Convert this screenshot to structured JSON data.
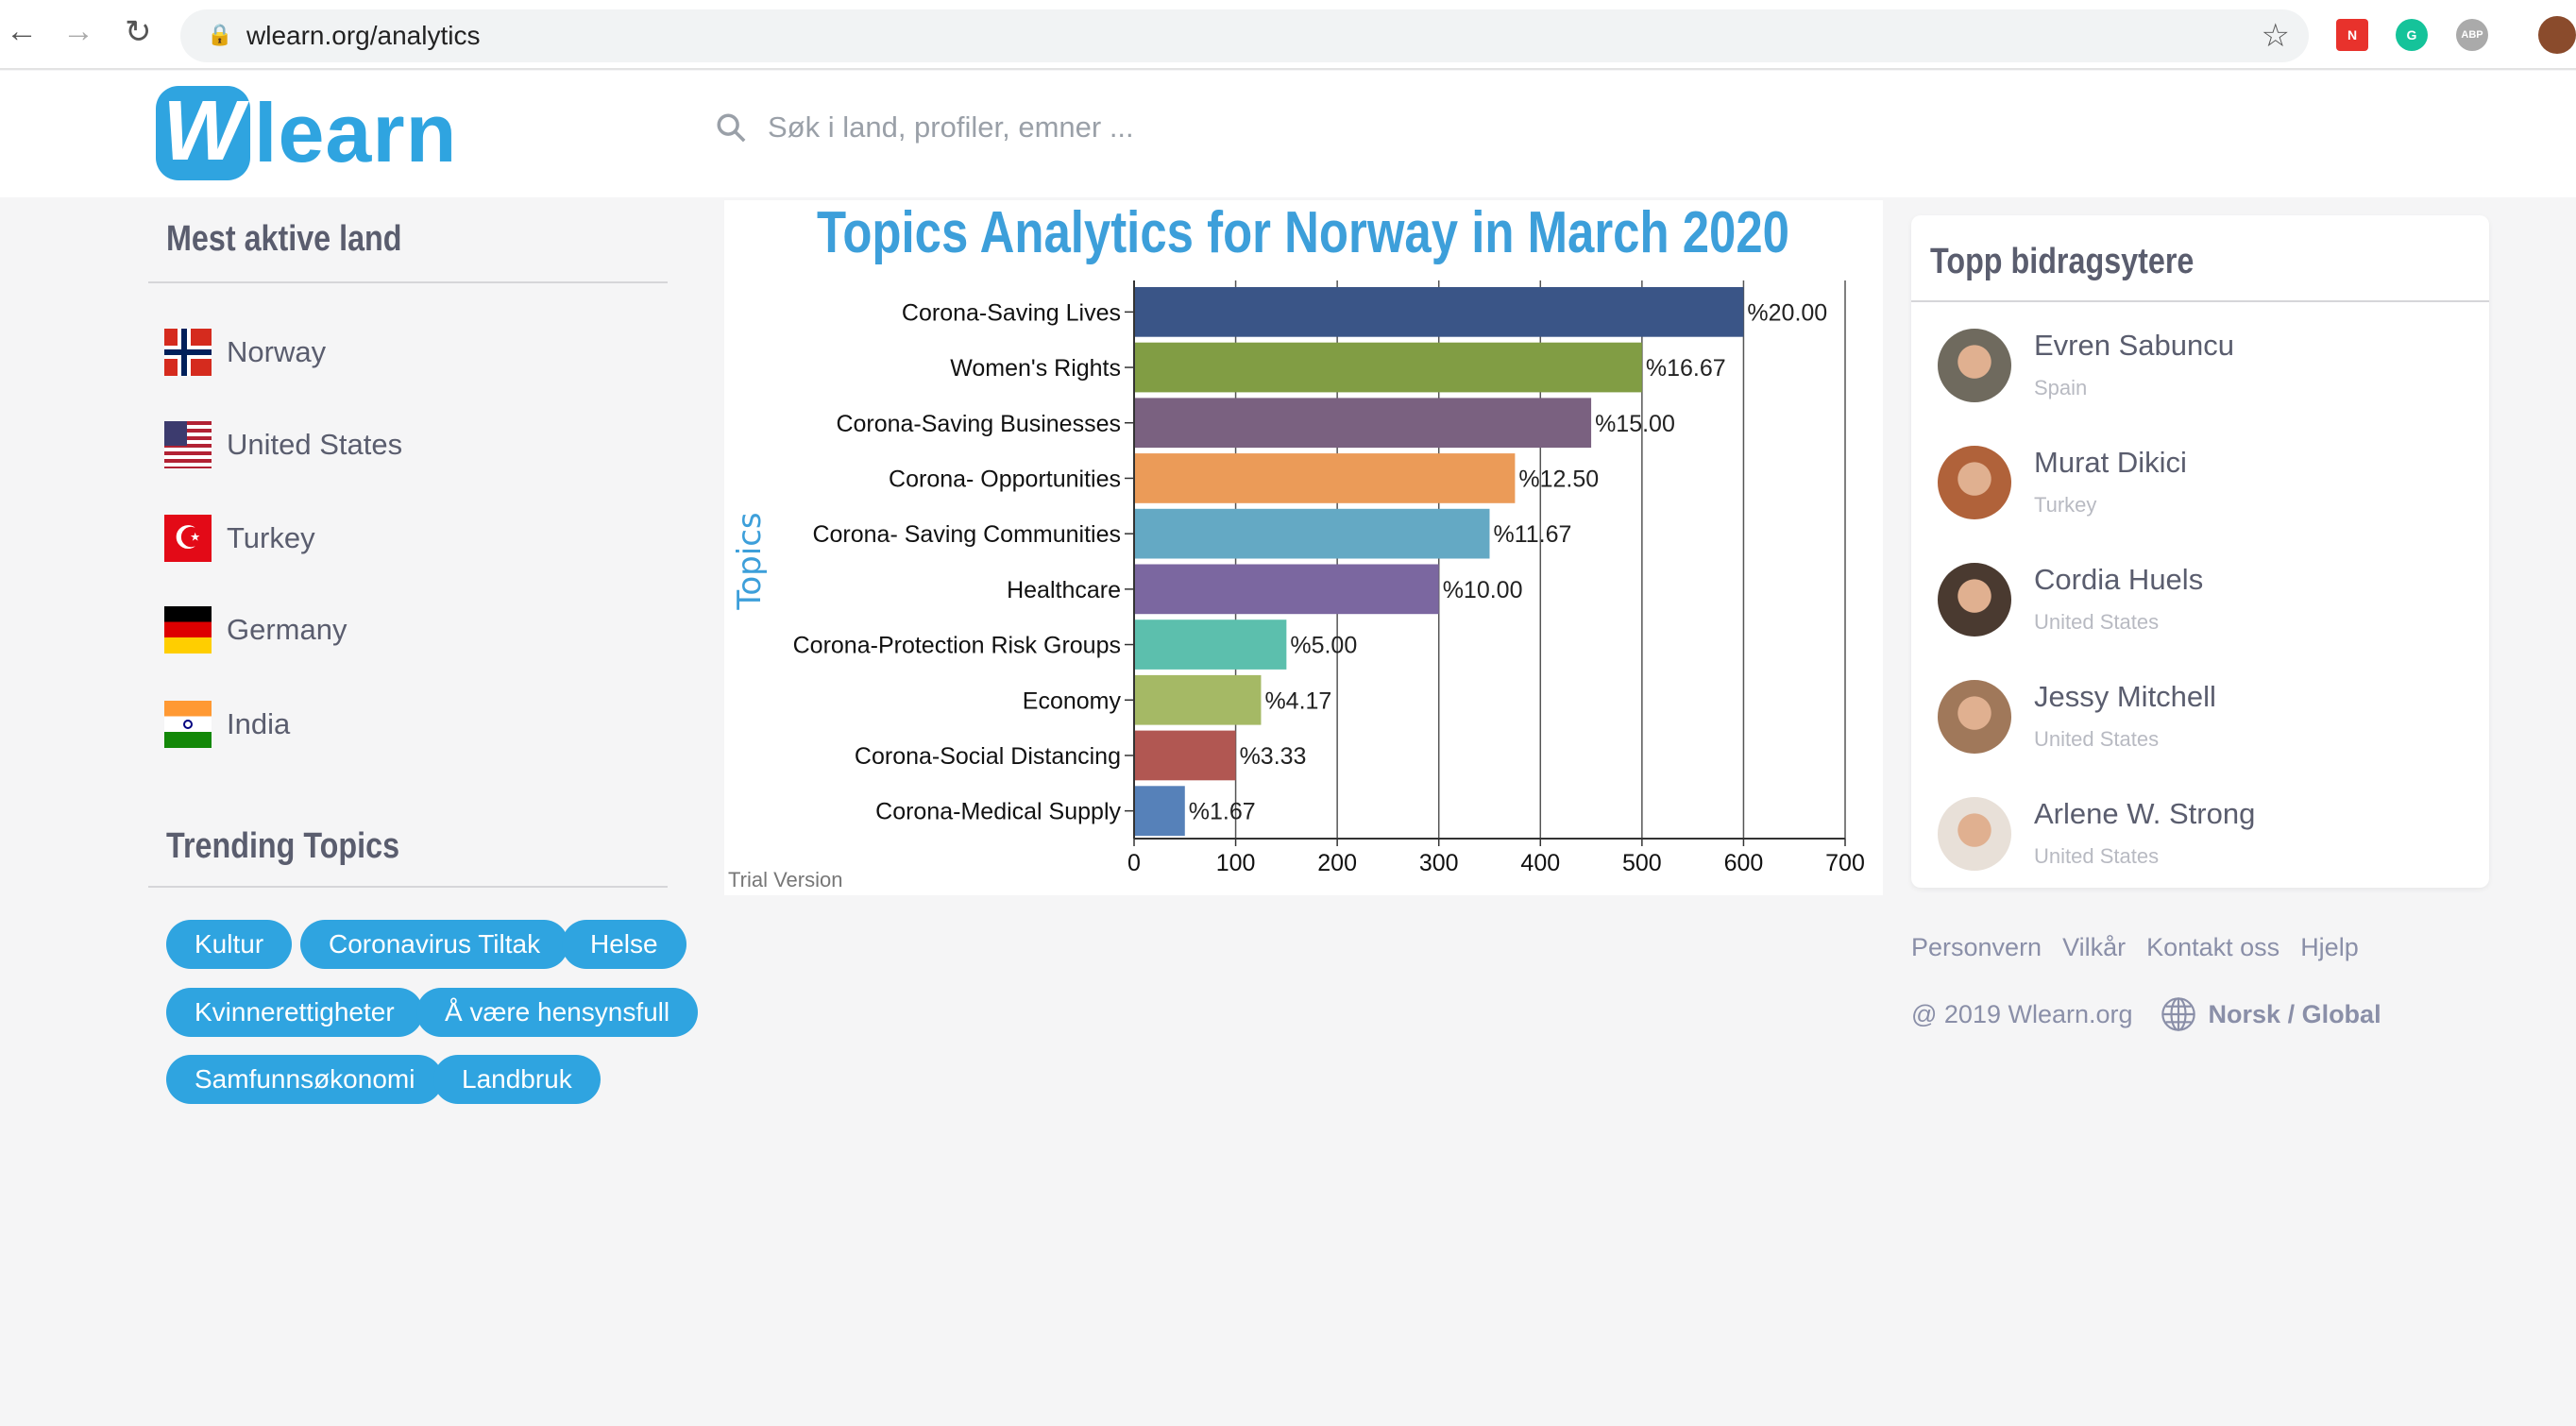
{
  "browser": {
    "url": "wlearn.org/analytics"
  },
  "header": {
    "logo_w": "W",
    "logo_text": "learn",
    "search_placeholder": "Søk i land, profiler, emner ..."
  },
  "sidebar": {
    "countries_title": "Mest aktive land",
    "countries": [
      {
        "name": "Norway"
      },
      {
        "name": "United States"
      },
      {
        "name": "Turkey"
      },
      {
        "name": "Germany"
      },
      {
        "name": "India"
      }
    ],
    "topics_title": "Trending Topics",
    "tags": [
      "Kultur",
      "Coronavirus Tiltak",
      "Helse",
      "Kvinnerettigheter",
      "Å være hensynsfull",
      "Samfunnsøkonomi",
      "Landbruk"
    ]
  },
  "chart_data": {
    "type": "bar",
    "orientation": "horizontal",
    "title": "Topics Analytics for Norway in March 2020",
    "ylabel": "Topics",
    "xlabel": "",
    "categories": [
      "Corona-Saving Lives",
      "Women's Rights",
      "Corona-Saving Businesses",
      "Corona- Opportunities",
      "Corona- Saving Communities",
      "Healthcare",
      "Corona-Protection Risk Groups",
      "Economy",
      "Corona-Social Distancing",
      "Corona-Medical Supply"
    ],
    "values": [
      600,
      500,
      450,
      375,
      350,
      300,
      150,
      125,
      100,
      50
    ],
    "labels": [
      "%20.00",
      "%16.67",
      "%15.00",
      "%12.50",
      "%11.67",
      "%10.00",
      "%5.00",
      "%4.17",
      "%3.33",
      "%1.67"
    ],
    "colors": [
      "#3a5587",
      "#819d44",
      "#7a6180",
      "#eb9b58",
      "#64a9c4",
      "#7b67a0",
      "#5cbfad",
      "#a5b965",
      "#b15752",
      "#5681b9"
    ],
    "xlim": [
      0,
      700
    ],
    "xticks": [
      0,
      100,
      200,
      300,
      400,
      500,
      600,
      700
    ],
    "grid": true,
    "watermark": "Trial Version"
  },
  "contributors": {
    "title": "Topp bidragsytere",
    "items": [
      {
        "name": "Evren Sabuncu",
        "country": "Spain"
      },
      {
        "name": "Murat Dikici",
        "country": "Turkey"
      },
      {
        "name": "Cordia Huels",
        "country": "United States"
      },
      {
        "name": "Jessy Mitchell",
        "country": "United States"
      },
      {
        "name": "Arlene W. Strong",
        "country": "United States"
      }
    ]
  },
  "footer": {
    "links": [
      "Personvern",
      "Vilkår",
      "Kontakt oss",
      "Hjelp"
    ],
    "copyright": "@ 2019 Wlearn.org",
    "language": "Norsk / Global"
  }
}
